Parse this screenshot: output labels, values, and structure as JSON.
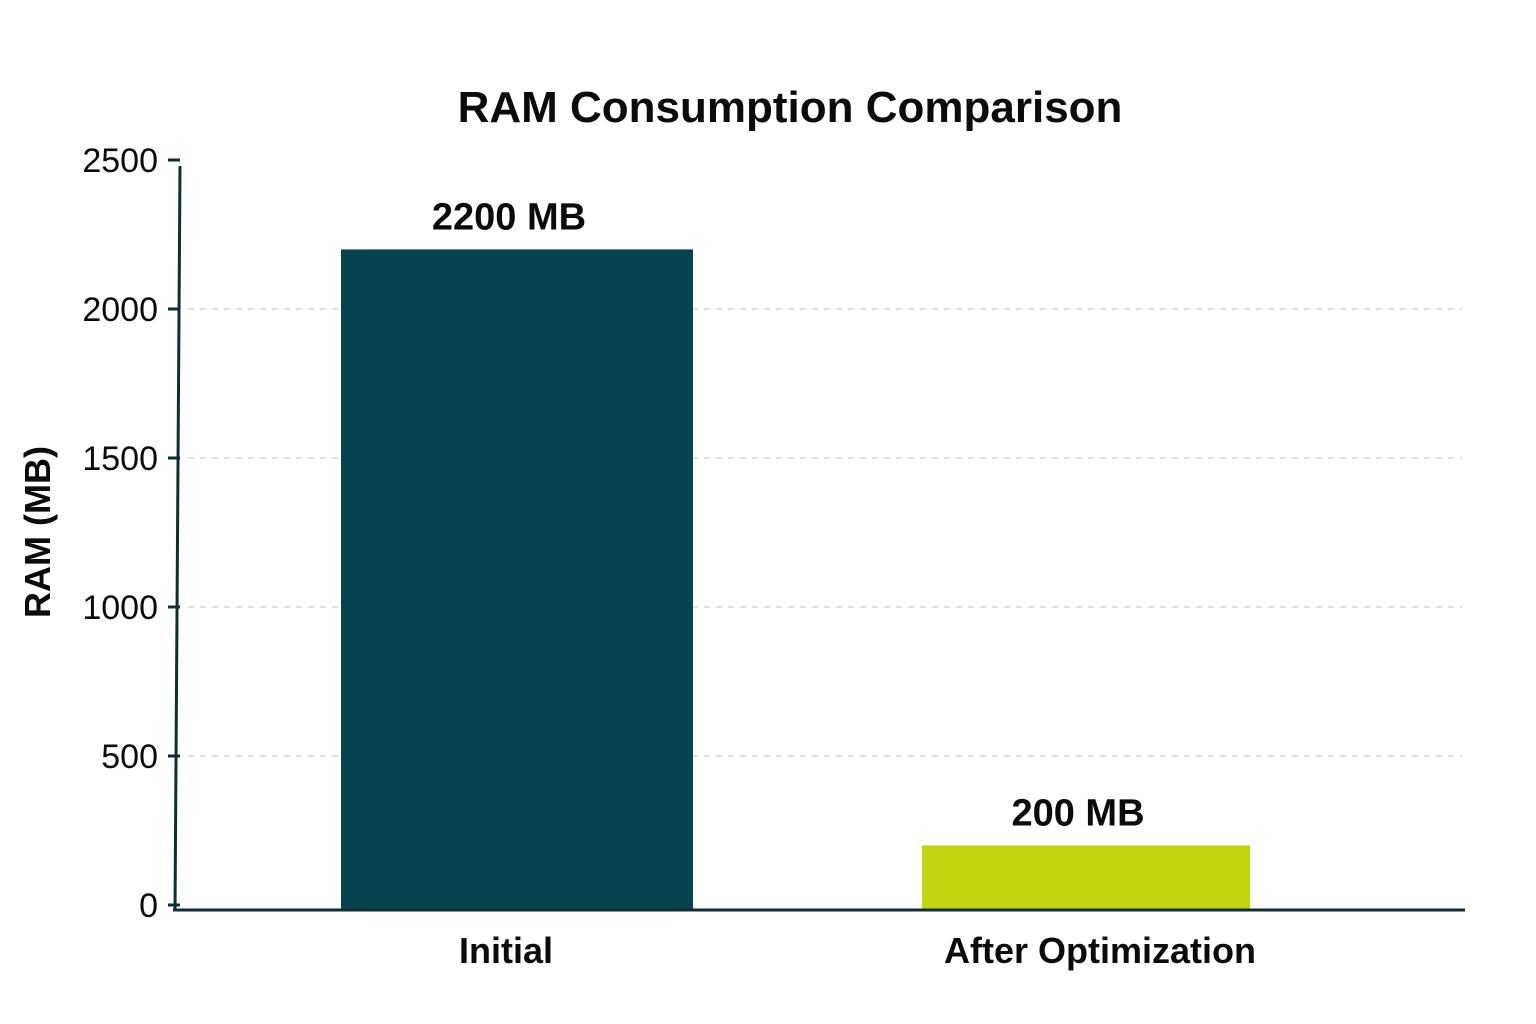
{
  "chart_data": {
    "type": "bar",
    "title": "RAM Consumption Comparison",
    "xlabel": "",
    "ylabel": "RAM (MB)",
    "categories": [
      "Initial",
      "After Optimization"
    ],
    "values": [
      2200,
      200
    ],
    "data_labels": [
      "2200 MB",
      "200 MB"
    ],
    "colors": [
      "#05434e",
      "#c2d60f"
    ],
    "ylim": [
      0,
      2500
    ],
    "yticks": [
      0,
      500,
      1000,
      1500,
      2000,
      2500
    ],
    "grid": true
  }
}
